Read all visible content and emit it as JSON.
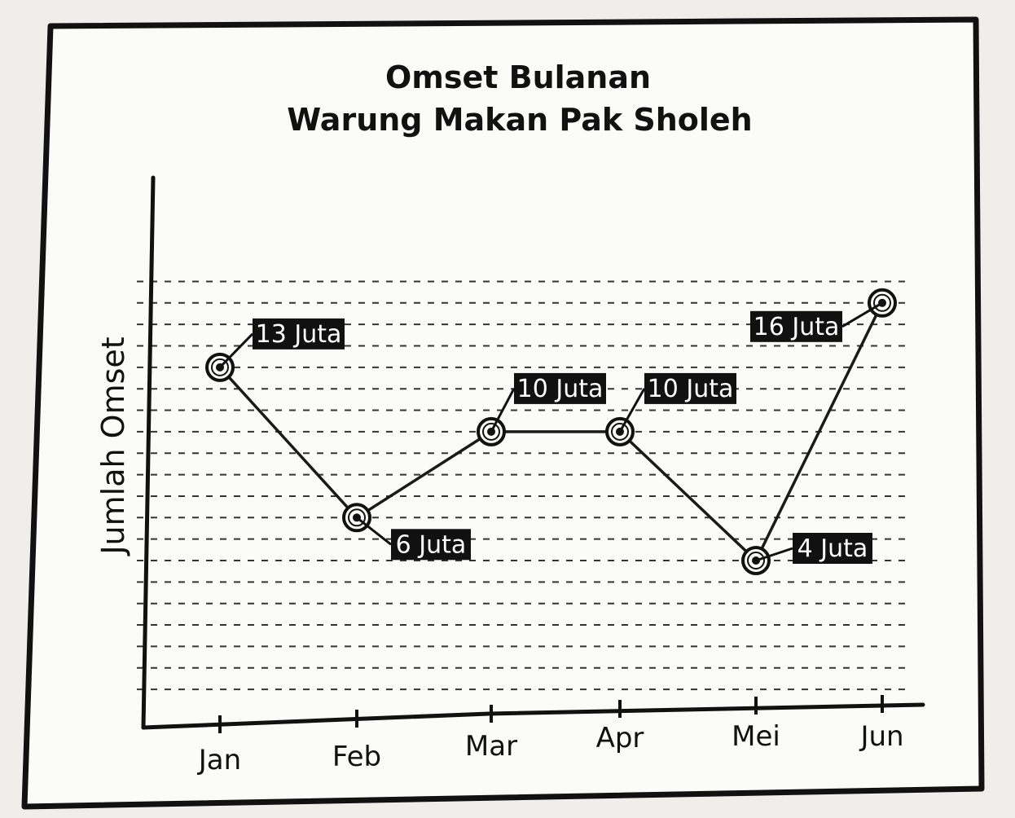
{
  "chart_data": {
    "type": "line",
    "title": [
      "Omset Bulanan",
      "Warung Makan Pak Sholeh"
    ],
    "xlabel": "",
    "ylabel": "Jumlah Omset",
    "categories": [
      "Jan",
      "Feb",
      "Mar",
      "Apr",
      "Mei",
      "Jun"
    ],
    "values": [
      13,
      6,
      10,
      10,
      4,
      16
    ],
    "data_labels": [
      "13 Juta",
      "6 Juta",
      "10 Juta",
      "10 Juta",
      "4 Juta",
      "16 Juta"
    ],
    "unit": "Juta",
    "ylim": [
      -2,
      17
    ],
    "grid": true,
    "y_tick_labels_shown": false
  },
  "colors": {
    "frame": "#111111",
    "line": "#1a1a1a",
    "label_bg": "#111111",
    "label_text": "#ffffff",
    "paper": "#fbfbf9",
    "background": "#efeeea"
  }
}
